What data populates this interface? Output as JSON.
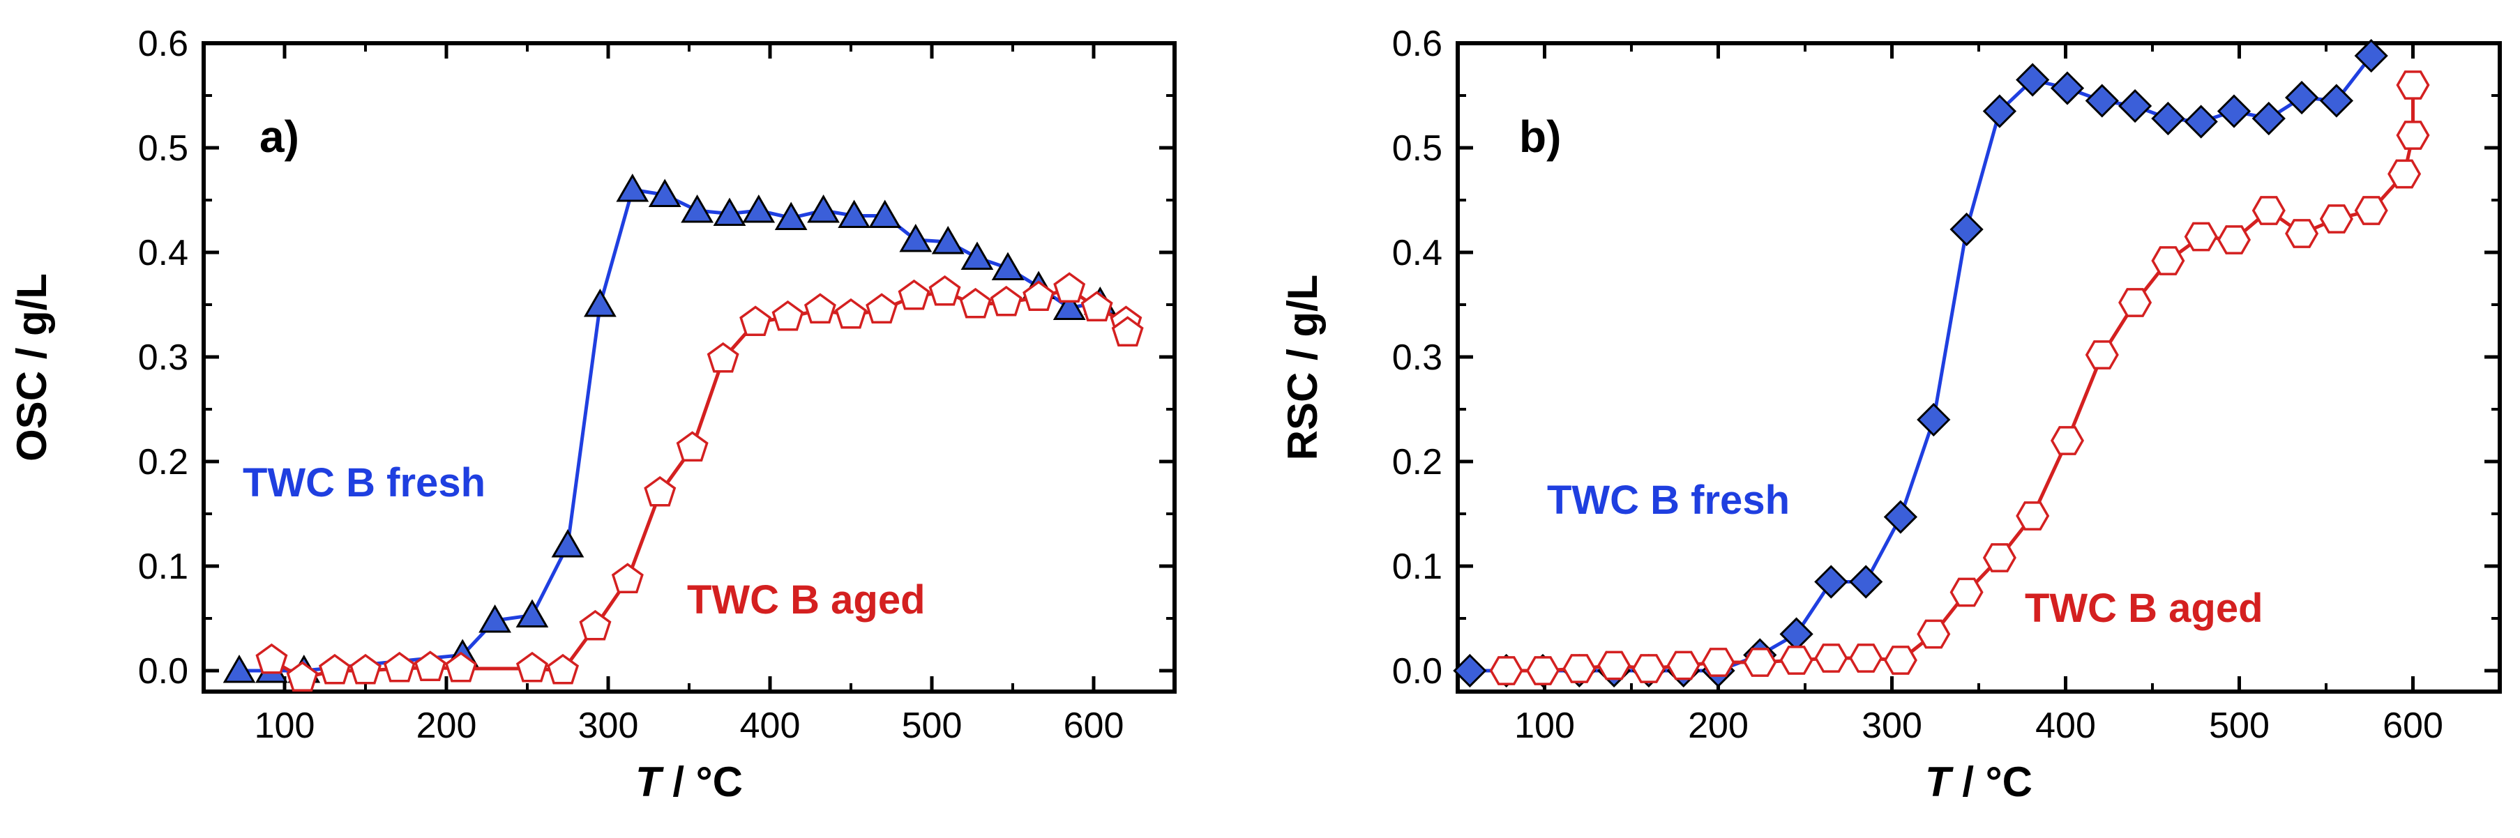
{
  "chart_data": [
    {
      "type": "line",
      "panel_label": "a)",
      "xlabel_italic": "T",
      "xlabel_rest": " / °C",
      "ylabel": "OSC / g/L",
      "xlim": [
        50,
        650
      ],
      "ylim": [
        -0.02,
        0.6
      ],
      "xticks": [
        100,
        200,
        300,
        400,
        500,
        600
      ],
      "yticks": [
        0.0,
        0.1,
        0.2,
        0.3,
        0.4,
        0.5,
        0.6
      ],
      "xtick_labels": [
        "100",
        "200",
        "300",
        "400",
        "500",
        "600"
      ],
      "ytick_labels": [
        "0.0",
        "0.1",
        "0.2",
        "0.3",
        "0.4",
        "0.5",
        "0.6"
      ],
      "series": [
        {
          "name": "TWC B fresh",
          "label_text": "TWC B fresh",
          "color": "#1f3fe0",
          "marker": "triangle",
          "marker_fill": "#3b5fd9",
          "x": [
            72,
            92,
            112,
            210,
            230,
            253,
            275,
            295,
            315,
            335,
            355,
            375,
            393,
            413,
            433,
            452,
            471,
            490,
            510,
            528,
            547,
            566,
            585,
            604
          ],
          "y": [
            0.0,
            0.0,
            0.0,
            0.015,
            0.048,
            0.053,
            0.12,
            0.35,
            0.46,
            0.455,
            0.44,
            0.437,
            0.44,
            0.433,
            0.44,
            0.435,
            0.435,
            0.412,
            0.41,
            0.395,
            0.385,
            0.367,
            0.347,
            0.352
          ]
        },
        {
          "name": "TWC B aged",
          "label_text": "TWC B aged",
          "color": "#d42020",
          "marker": "pentagon",
          "marker_fill": "#ffffff",
          "x": [
            92,
            111,
            131,
            150,
            171,
            190,
            209,
            253,
            272,
            292,
            312,
            332,
            352,
            371,
            391,
            411,
            431,
            450,
            469,
            489,
            508,
            527,
            546,
            566,
            585,
            602,
            620,
            621
          ],
          "y": [
            0.01,
            -0.007,
            0.0,
            0.0,
            0.002,
            0.003,
            0.002,
            0.002,
            0.0,
            0.042,
            0.087,
            0.17,
            0.213,
            0.298,
            0.333,
            0.338,
            0.345,
            0.34,
            0.345,
            0.358,
            0.362,
            0.35,
            0.352,
            0.357,
            0.365,
            0.347,
            0.333,
            0.323
          ]
        }
      ]
    },
    {
      "type": "line",
      "panel_label": "b)",
      "xlabel_italic": "T",
      "xlabel_rest": " / °C",
      "ylabel": "RSC / g/L",
      "xlim": [
        50,
        650
      ],
      "ylim": [
        -0.02,
        0.6
      ],
      "xticks": [
        100,
        200,
        300,
        400,
        500,
        600
      ],
      "yticks": [
        0.0,
        0.1,
        0.2,
        0.3,
        0.4,
        0.5,
        0.6
      ],
      "xtick_labels": [
        "100",
        "200",
        "300",
        "400",
        "500",
        "600"
      ],
      "ytick_labels": [
        "0.0",
        "0.1",
        "0.2",
        "0.3",
        "0.4",
        "0.5",
        "0.6"
      ],
      "series": [
        {
          "name": "TWC B fresh",
          "label_text": "TWC B fresh",
          "color": "#1f3fe0",
          "marker": "diamond",
          "marker_fill": "#3b5fd9",
          "x": [
            57,
            78,
            99,
            120,
            140,
            160,
            180,
            200,
            224,
            245,
            265,
            285,
            305,
            324,
            343,
            362,
            381,
            401,
            421,
            440,
            459,
            478,
            497,
            517,
            536,
            556,
            576
          ],
          "y": [
            0.0,
            0.0,
            0.0,
            0.0,
            0.0,
            0.0,
            0.0,
            0.0,
            0.015,
            0.035,
            0.085,
            0.085,
            0.147,
            0.24,
            0.422,
            0.535,
            0.565,
            0.557,
            0.545,
            0.54,
            0.528,
            0.525,
            0.535,
            0.528,
            0.548,
            0.545,
            0.588
          ]
        },
        {
          "name": "TWC B aged",
          "label_text": "TWC B aged",
          "color": "#d42020",
          "marker": "hexagon",
          "marker_fill": "#ffffff",
          "x": [
            78,
            99,
            120,
            140,
            160,
            180,
            200,
            224,
            245,
            265,
            285,
            305,
            324,
            343,
            362,
            381,
            401,
            421,
            440,
            459,
            478,
            497,
            517,
            536,
            556,
            576,
            595,
            600,
            600
          ],
          "y": [
            0.0,
            0.0,
            0.002,
            0.005,
            0.002,
            0.005,
            0.008,
            0.008,
            0.01,
            0.012,
            0.012,
            0.01,
            0.035,
            0.075,
            0.108,
            0.148,
            0.22,
            0.302,
            0.352,
            0.392,
            0.415,
            0.412,
            0.44,
            0.418,
            0.432,
            0.44,
            0.475,
            0.512,
            0.56
          ]
        }
      ]
    }
  ]
}
